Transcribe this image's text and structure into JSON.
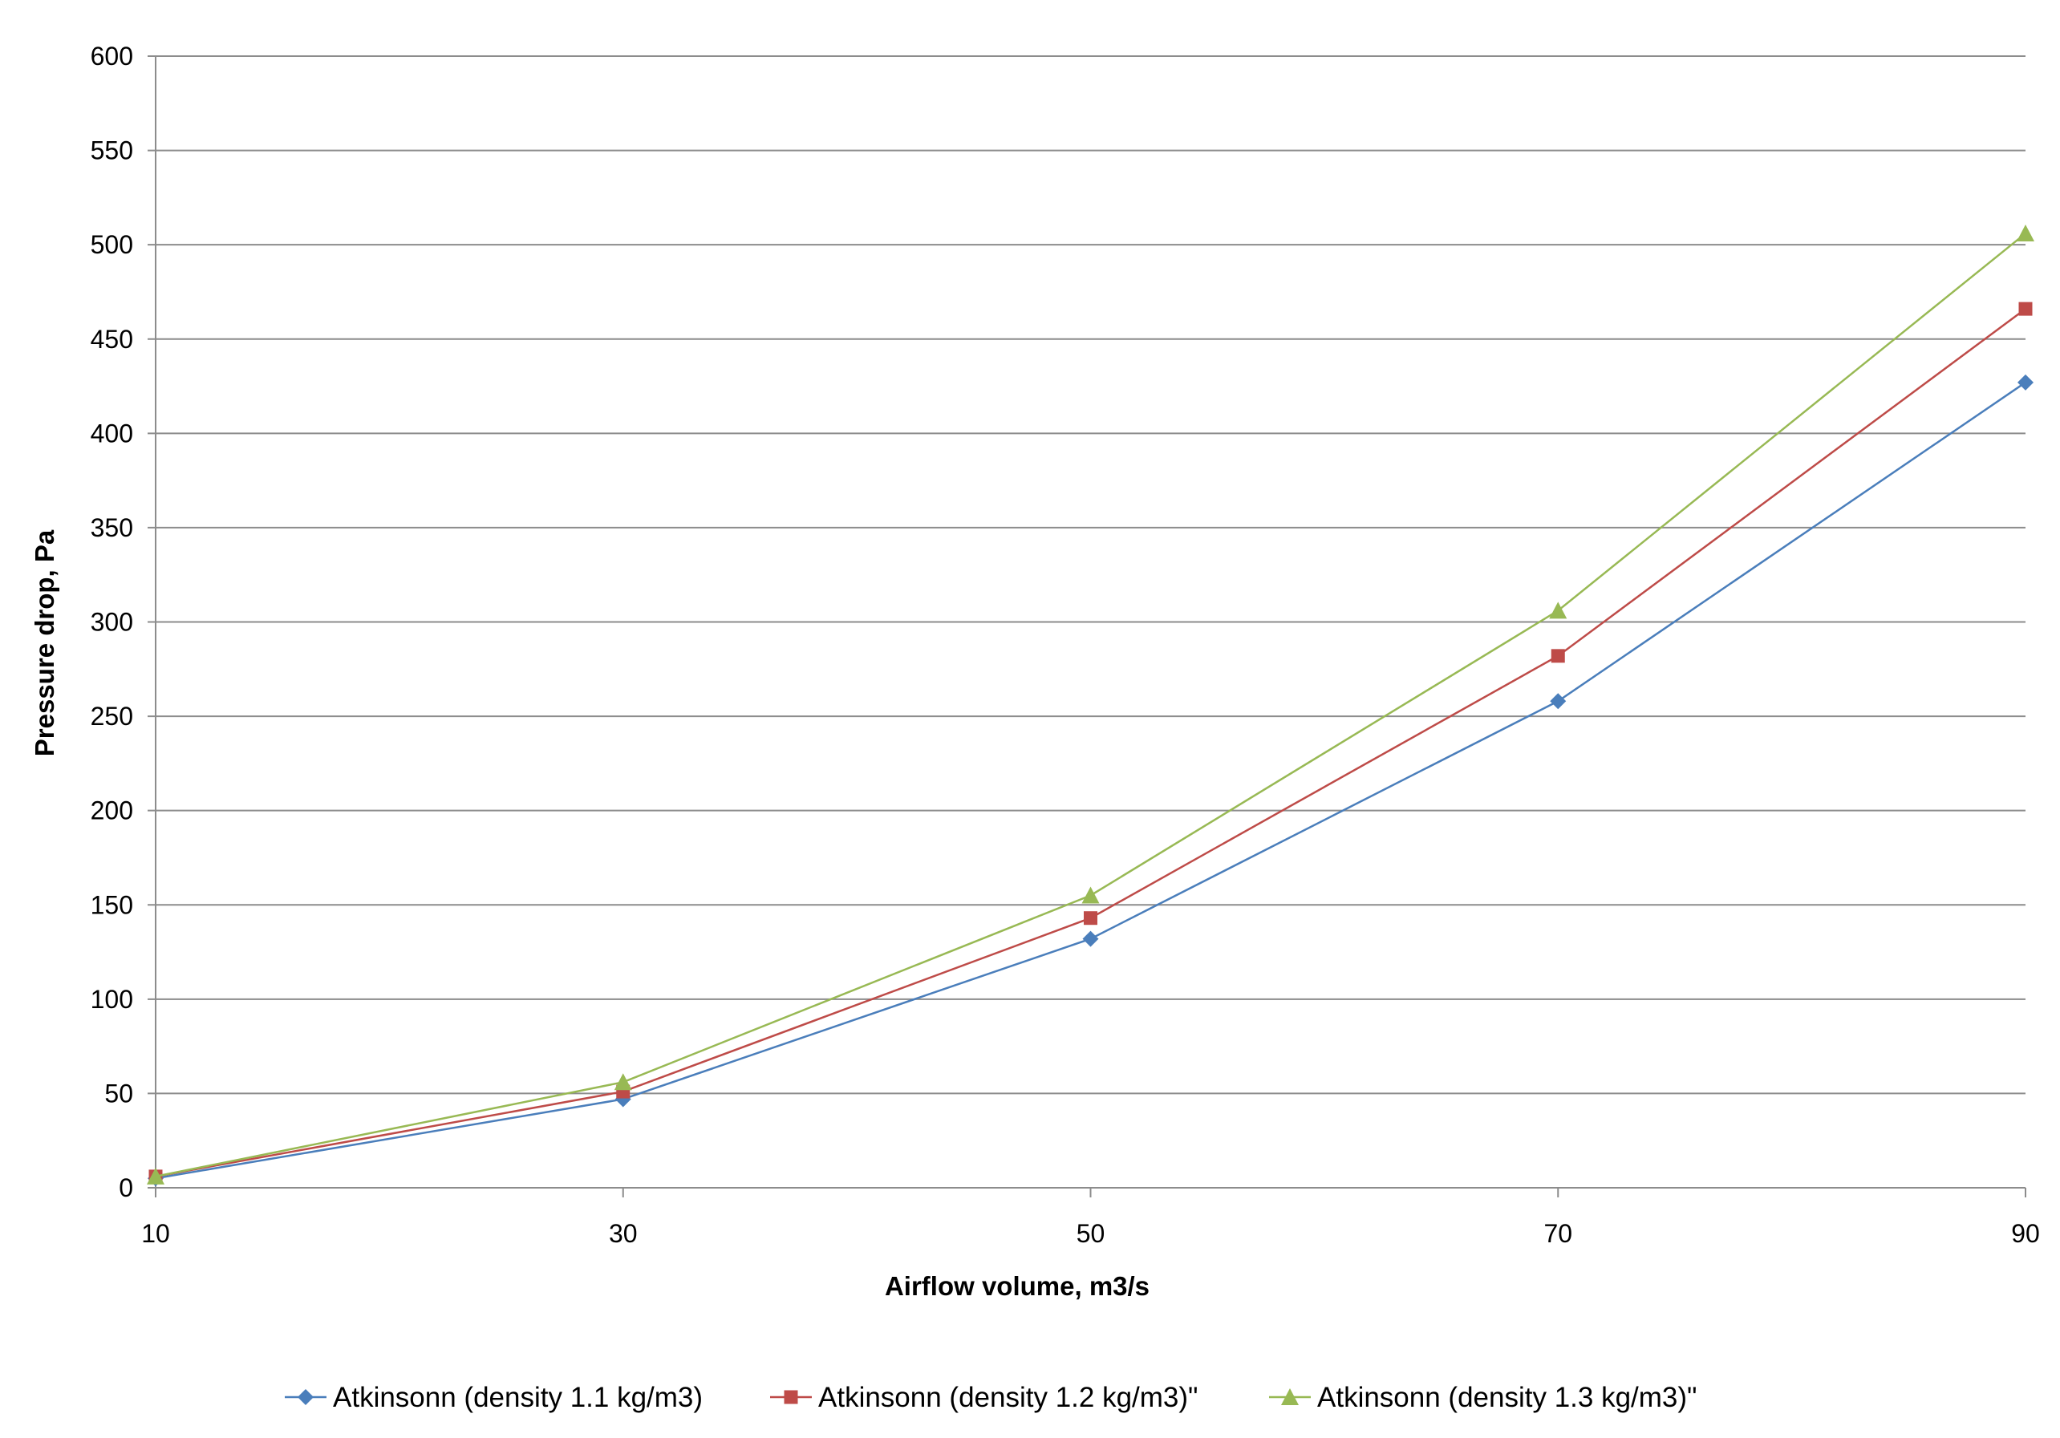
{
  "chart_data": {
    "type": "line",
    "title": "",
    "xlabel": "Airflow volume, m3/s",
    "ylabel": "Pressure drop, Pa",
    "x": [
      10,
      30,
      50,
      70,
      90
    ],
    "xlim": [
      10,
      90
    ],
    "ylim": [
      0,
      600
    ],
    "x_ticks": [
      "10",
      "30",
      "50",
      "70",
      "90"
    ],
    "y_ticks": [
      "0",
      "50",
      "100",
      "150",
      "200",
      "250",
      "300",
      "350",
      "400",
      "450",
      "500",
      "550",
      "600"
    ],
    "grid": "horizontal",
    "legend_position": "bottom",
    "series": [
      {
        "name": "Atkinsonn (density 1.1 kg/m3)",
        "color": "#4a7ebb",
        "marker": "diamond",
        "values": [
          5,
          47,
          132,
          258,
          427
        ]
      },
      {
        "name": "Atkinsonn (density 1.2 kg/m3)\"",
        "color": "#be4b48",
        "marker": "square",
        "values": [
          6,
          51,
          143,
          282,
          466
        ]
      },
      {
        "name": "Atkinsonn (density 1.3 kg/m3)\"",
        "color": "#98b954",
        "marker": "triangle",
        "values": [
          6,
          56,
          155,
          306,
          506
        ]
      }
    ]
  }
}
